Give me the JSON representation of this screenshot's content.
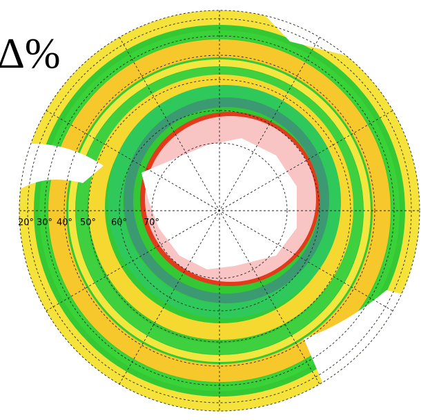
{
  "title": "Δ%",
  "latitude_labels": [
    "20°",
    "30°",
    "40°",
    "50°",
    "60°",
    "70°"
  ]
}
